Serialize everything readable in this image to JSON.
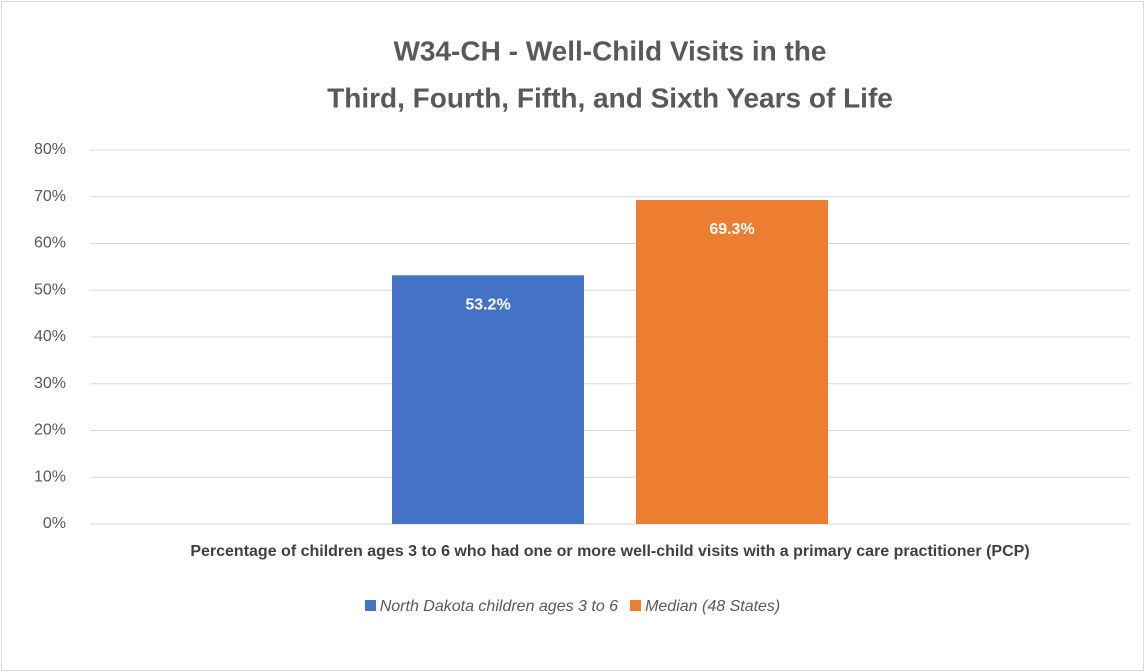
{
  "chart_data": {
    "type": "bar",
    "title": [
      "W34-CH - Well-Child Visits in the",
      "Third, Fourth, Fifth, and Sixth Years of Life"
    ],
    "categories": [
      "Percentage of children ages 3 to 6 who had one or more well-child visits with a primary care practitioner (PCP)"
    ],
    "series": [
      {
        "name": "North Dakota children ages 3 to 6",
        "color": "#4472c4",
        "values": [
          53.2
        ],
        "value_labels": [
          "53.2%"
        ]
      },
      {
        "name": "Median (48 States)",
        "color": "#ed7d31",
        "values": [
          69.3
        ],
        "value_labels": [
          "69.3%"
        ]
      }
    ],
    "ylim": [
      0,
      80
    ],
    "yticks": [
      {
        "value": 0,
        "label": "0%"
      },
      {
        "value": 10,
        "label": "10%"
      },
      {
        "value": 20,
        "label": "20%"
      },
      {
        "value": 30,
        "label": "30%"
      },
      {
        "value": 40,
        "label": "40%"
      },
      {
        "value": 50,
        "label": "50%"
      },
      {
        "value": 60,
        "label": "60%"
      },
      {
        "value": 70,
        "label": "70%"
      },
      {
        "value": 80,
        "label": "80%"
      }
    ],
    "grid": true,
    "legend": "bottom"
  }
}
